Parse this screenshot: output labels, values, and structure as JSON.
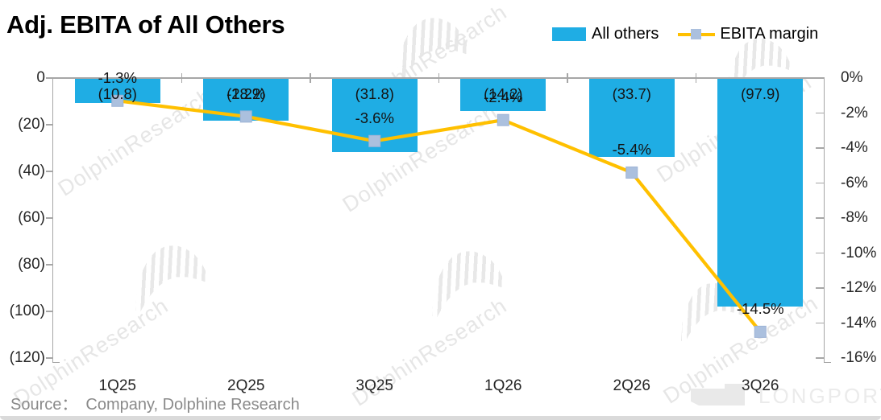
{
  "title": "Adj. EBITA of All Others",
  "legend": {
    "items": [
      {
        "label": "All others",
        "swatch": "bar"
      },
      {
        "label": "EBITA margin",
        "swatch": "line-marker"
      }
    ]
  },
  "source": {
    "label": "Source：",
    "text": "Company, Dolphine Research"
  },
  "watermark": {
    "text": "DolphinResearch",
    "logo_text": "LONGPORT"
  },
  "colors": {
    "bar": "#1FADE4",
    "line": "#FFC000",
    "marker": "#ABC0DE",
    "marker_edge": "#9DB3D6",
    "axis": "#A6A6A6",
    "label_text": "#141414",
    "watermark": "#E6E6E6",
    "source_text": "#8A8A8A",
    "logo": "#EBEBEB"
  },
  "chart_data": {
    "type": "combo (bar + line)",
    "title": "Adj. EBITA of All Others",
    "categories": [
      "1Q25",
      "2Q25",
      "3Q25",
      "1Q26",
      "2Q26",
      "3Q26"
    ],
    "series": [
      {
        "name": "All others",
        "type": "bar",
        "axis": "left",
        "values": [
          -10.8,
          -18.2,
          -31.8,
          -14.2,
          -33.7,
          -97.9
        ],
        "data_labels": [
          "(10.8)",
          "(18.2)",
          "(31.8)",
          "(14.2)",
          "(33.7)",
          "(97.9)"
        ]
      },
      {
        "name": "EBITA margin",
        "type": "line",
        "axis": "right",
        "values_pct": [
          -1.3,
          -2.2,
          -3.6,
          -2.4,
          -5.4,
          -14.5
        ],
        "data_labels": [
          "-1.3%",
          "-2.2%",
          "-3.6%",
          "-2.4%",
          "-5.4%",
          "-14.5%"
        ]
      }
    ],
    "left_axis": {
      "min": -120,
      "max": 0,
      "step": 20,
      "tick_labels": [
        "0",
        "(20)",
        "(40)",
        "(60)",
        "(80)",
        "(100)",
        "(120)"
      ]
    },
    "right_axis": {
      "min": -16,
      "max": 0,
      "step": 2,
      "tick_labels": [
        "0%",
        "-2%",
        "-4%",
        "-6%",
        "-8%",
        "-10%",
        "-12%",
        "-14%",
        "-16%"
      ]
    },
    "grid": false,
    "legend_position": "top-right"
  }
}
